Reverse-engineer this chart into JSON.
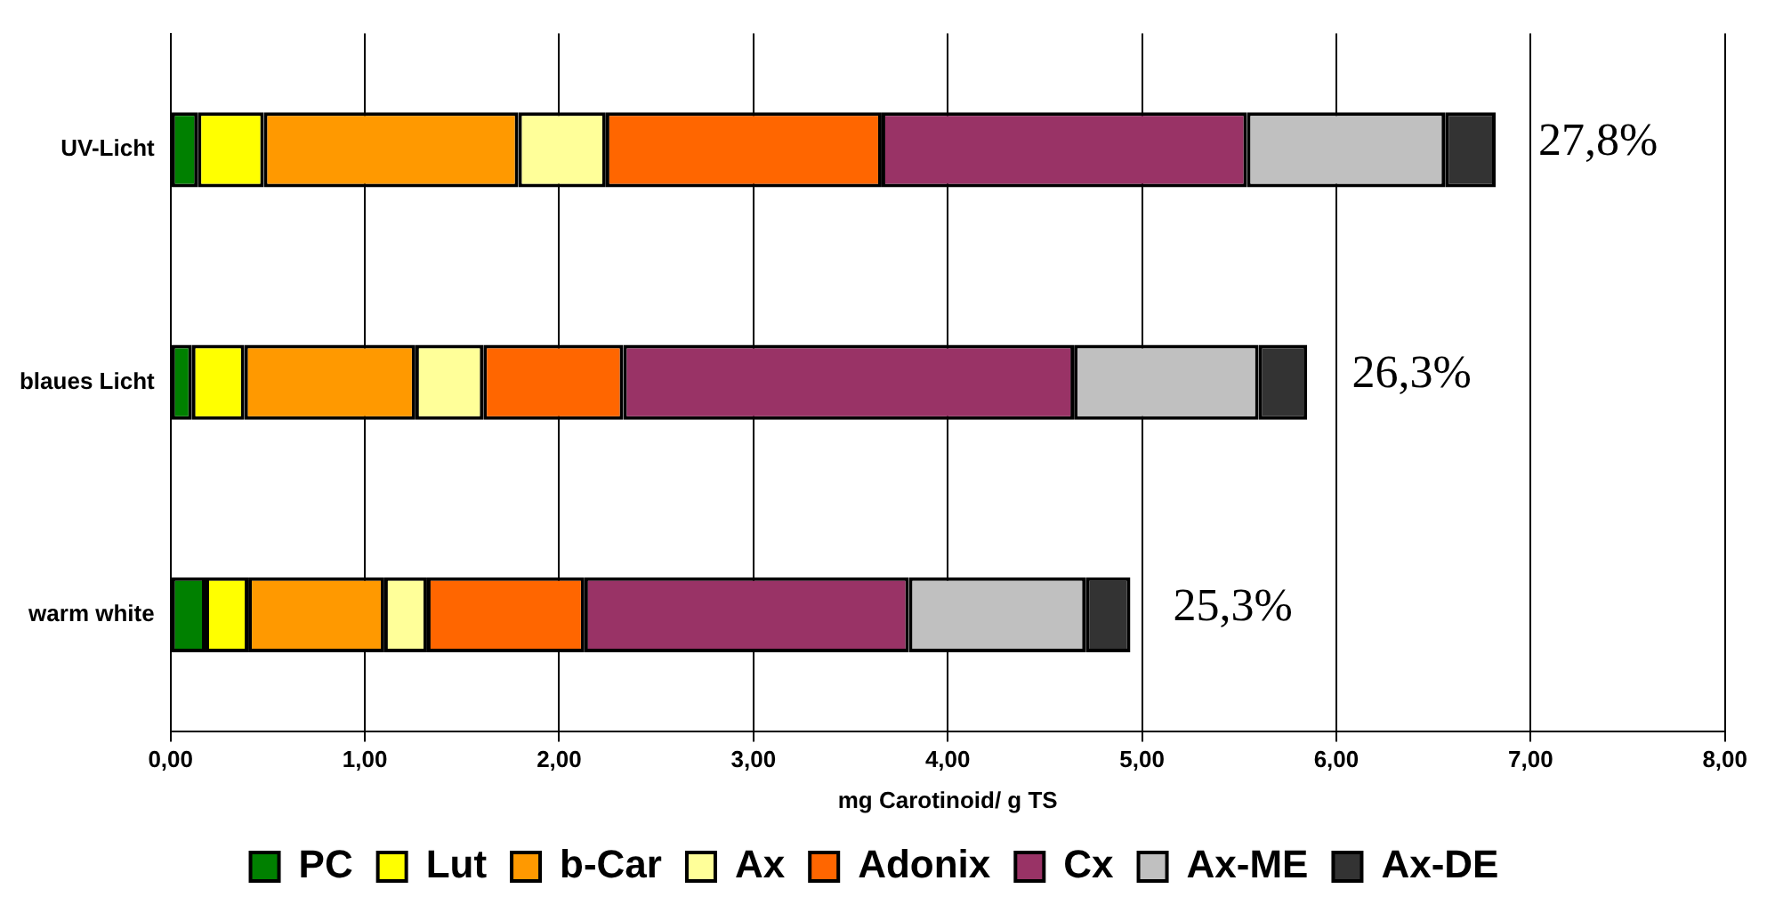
{
  "chart_data": {
    "type": "bar",
    "orientation": "horizontal",
    "stacked": true,
    "xlabel": "mg Carotinoid/ g TS",
    "categories": [
      "UV-Licht",
      "blaues Licht",
      "warm white"
    ],
    "series": [
      {
        "name": "PC",
        "color": "#008000",
        "values": [
          0.14,
          0.11,
          0.18
        ]
      },
      {
        "name": "Lut",
        "color": "#ffff00",
        "values": [
          0.34,
          0.27,
          0.22
        ]
      },
      {
        "name": "b-Car",
        "color": "#ff9900",
        "values": [
          1.31,
          0.88,
          0.7
        ]
      },
      {
        "name": "Ax",
        "color": "#ffff99",
        "values": [
          0.45,
          0.35,
          0.22
        ]
      },
      {
        "name": "Adonix",
        "color": "#ff6600",
        "values": [
          1.42,
          0.72,
          0.81
        ]
      },
      {
        "name": "Cx",
        "color": "#993366",
        "values": [
          1.88,
          2.32,
          1.67
        ]
      },
      {
        "name": "Ax-ME",
        "color": "#c0c0c0",
        "values": [
          1.02,
          0.95,
          0.91
        ]
      },
      {
        "name": "Ax-DE",
        "color": "#333333",
        "values": [
          0.26,
          0.25,
          0.23
        ]
      }
    ],
    "xlim": [
      0,
      8
    ],
    "xticks": [
      {
        "value": 0,
        "label": "0,00"
      },
      {
        "value": 1,
        "label": "1,00"
      },
      {
        "value": 2,
        "label": "2,00"
      },
      {
        "value": 3,
        "label": "3,00"
      },
      {
        "value": 4,
        "label": "4,00"
      },
      {
        "value": 5,
        "label": "5,00"
      },
      {
        "value": 6,
        "label": "6,00"
      },
      {
        "value": 7,
        "label": "7,00"
      },
      {
        "value": 8,
        "label": "8,00"
      }
    ],
    "grid": "x",
    "legend": "bottom",
    "annotations": [
      {
        "text": "27,8%",
        "x": 6.82,
        "y": "UV-Licht"
      },
      {
        "text": "26,3%",
        "x": 5.86,
        "y": "blaues Licht"
      },
      {
        "text": "25,3%",
        "x": 4.94,
        "y": "warm white"
      }
    ]
  }
}
